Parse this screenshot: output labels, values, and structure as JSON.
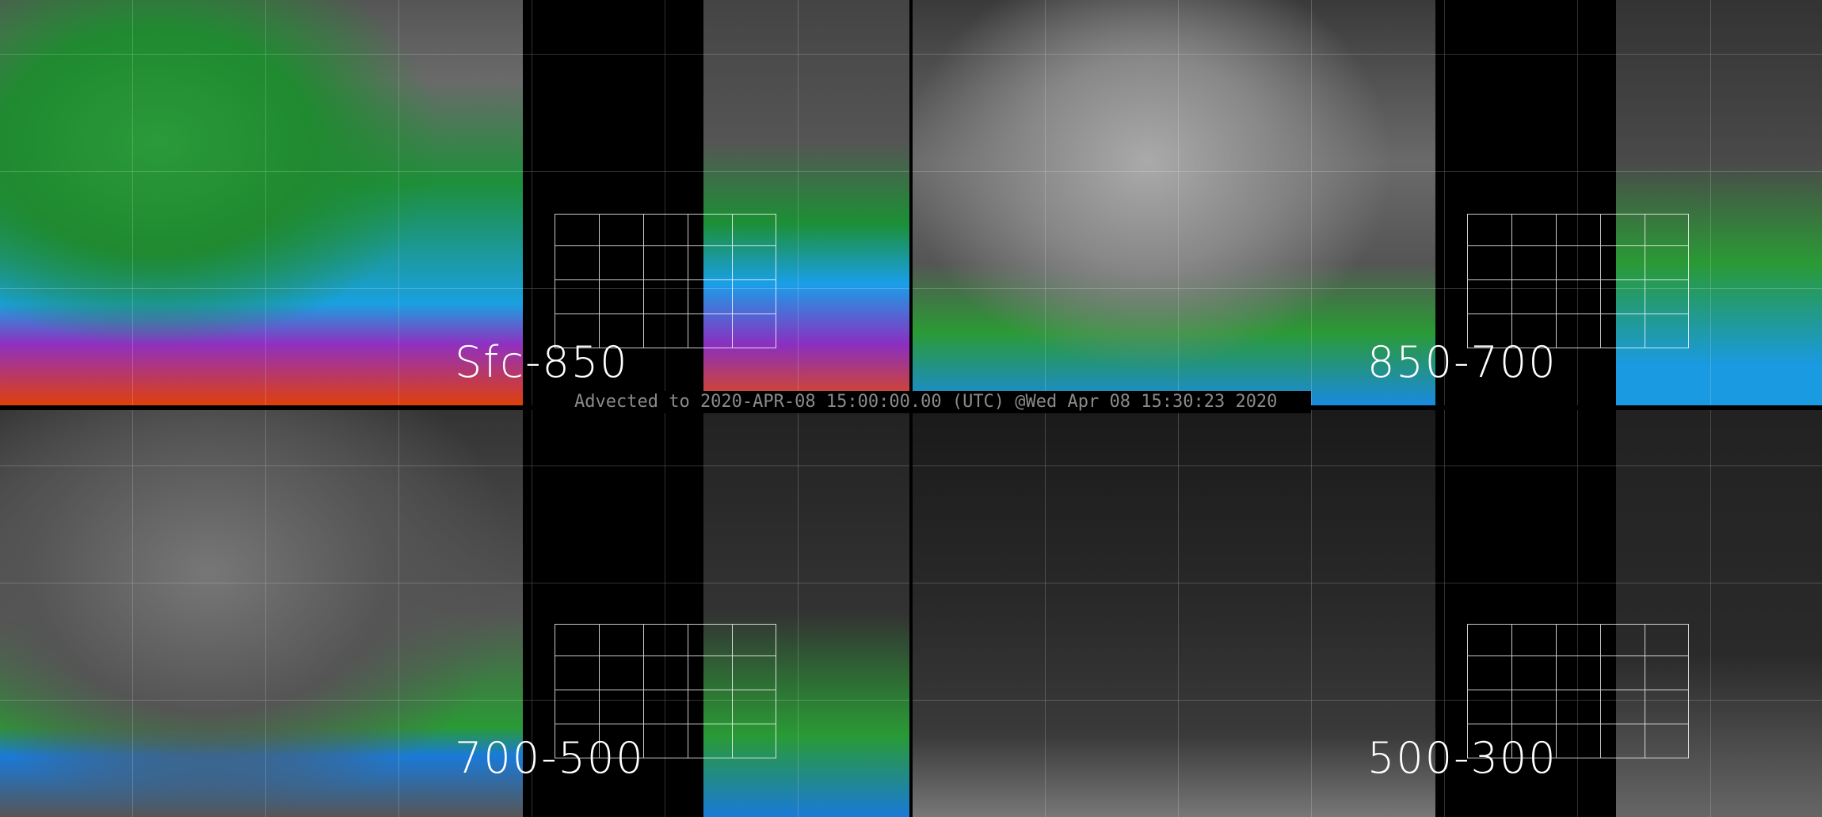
{
  "panels": [
    {
      "label": "Sfc-850"
    },
    {
      "label": "850-700"
    },
    {
      "label": "700-500"
    },
    {
      "label": "500-300"
    }
  ],
  "banner": {
    "text": "Advected to 2020-APR-08 15:00:00.00 (UTC) @Wed Apr 08 15:30:23 2020"
  },
  "colors": {
    "background": "#000000",
    "label": "#ffffff",
    "banner_text": "#8a8a8a",
    "moist_green": "#2a9a35",
    "moist_blue": "#1a9fe8",
    "moist_purple": "#9030c0",
    "moist_red": "#e0400a"
  }
}
